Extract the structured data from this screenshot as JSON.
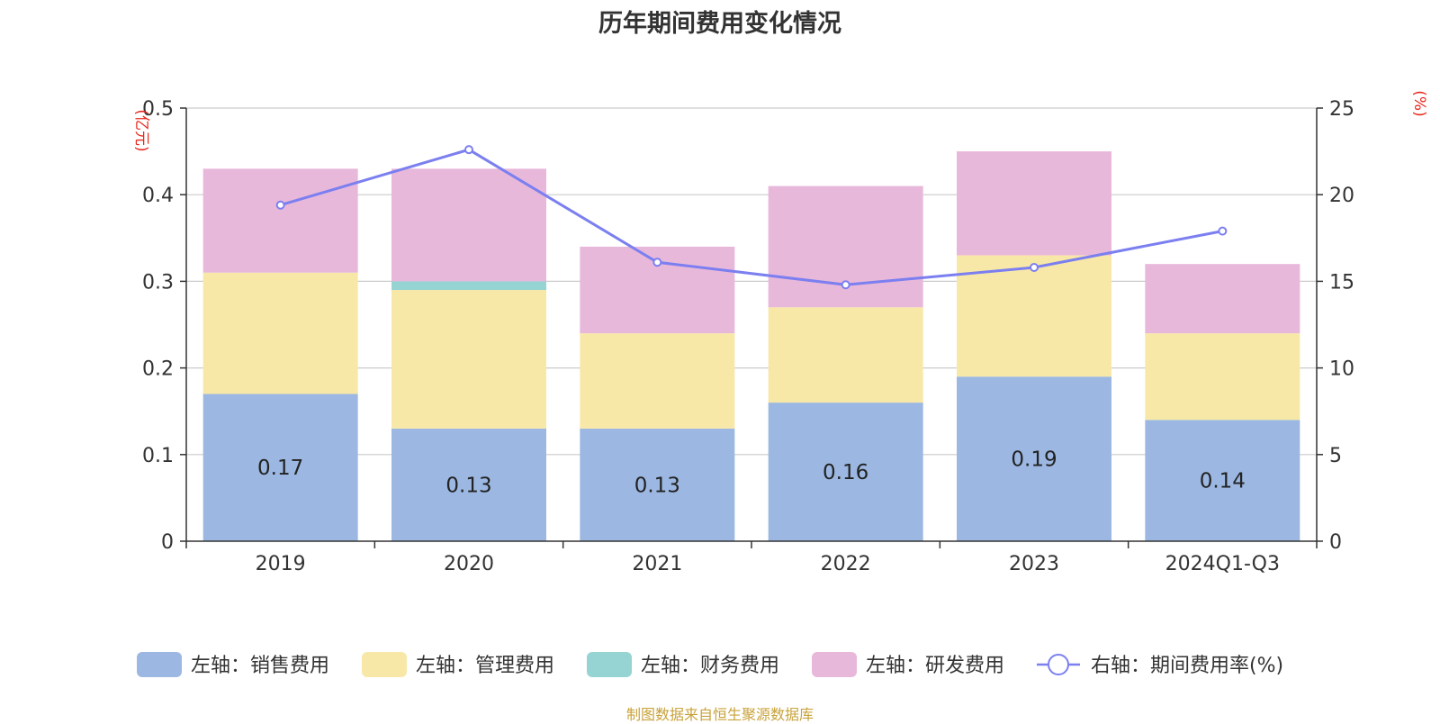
{
  "title": "历年期间费用变化情况",
  "source": "制图数据来自恒生聚源数据库",
  "chart_data": {
    "type": "bar",
    "stacked": true,
    "categories": [
      "2019",
      "2020",
      "2021",
      "2022",
      "2023",
      "2024Q1-Q3"
    ],
    "y_left": {
      "unit": "(亿元)",
      "ylim": [
        0,
        0.5
      ],
      "ticks": [
        "0",
        "0.1",
        "0.2",
        "0.3",
        "0.4",
        "0.5"
      ]
    },
    "y_right": {
      "unit": "(%)",
      "ylim": [
        0,
        25
      ],
      "ticks": [
        "0",
        "5",
        "10",
        "15",
        "20",
        "25"
      ]
    },
    "grid": true,
    "legend_position": "bottom",
    "series": [
      {
        "name": "左轴：销售费用",
        "axis": "left",
        "color": "#9cb8e2",
        "values": [
          0.17,
          0.13,
          0.13,
          0.16,
          0.19,
          0.14
        ],
        "labels": [
          "0.17",
          "0.13",
          "0.13",
          "0.16",
          "0.19",
          "0.14"
        ]
      },
      {
        "name": "左轴：管理费用",
        "axis": "left",
        "color": "#f8e8a8",
        "values": [
          0.14,
          0.16,
          0.11,
          0.11,
          0.14,
          0.1
        ]
      },
      {
        "name": "左轴：财务费用",
        "axis": "left",
        "color": "#96d4d4",
        "values": [
          0.0,
          0.01,
          0.0,
          0.0,
          0.0,
          0.0
        ]
      },
      {
        "name": "左轴：研发费用",
        "axis": "left",
        "color": "#e8b8da",
        "values": [
          0.12,
          0.13,
          0.1,
          0.14,
          0.12,
          0.08
        ]
      },
      {
        "name": "右轴：期间费用率(%)",
        "axis": "right",
        "type": "line",
        "color": "#7b7ff0",
        "values": [
          19.4,
          22.6,
          16.1,
          14.8,
          15.8,
          17.9
        ]
      }
    ]
  }
}
